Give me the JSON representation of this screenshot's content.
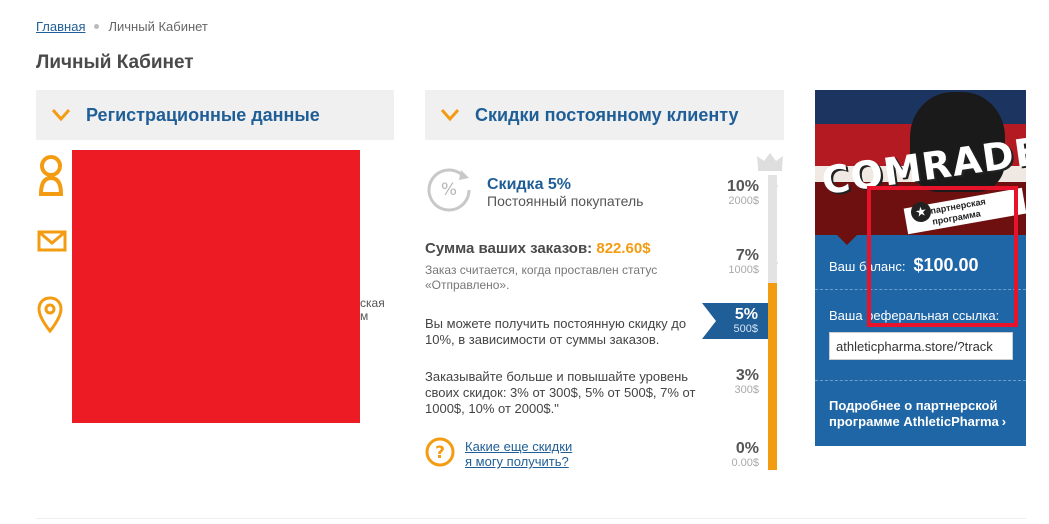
{
  "breadcrumb": {
    "home": "Главная",
    "current": "Личный Кабинет"
  },
  "page_title": "Личный Кабинет",
  "registration": {
    "header": "Регистрационные данные",
    "cut_text_1": "ская",
    "cut_text_2": "м"
  },
  "discounts": {
    "header": "Скидки постоянному клиенту",
    "current_title": "Скидка 5%",
    "current_subtitle": "Постоянный покупатель",
    "sum_label": "Сумма ваших заказов:",
    "sum_value": "822.60$",
    "sum_note": "Заказ считается, когда проставлен статус «Отправлено».",
    "text_1": "Вы можете получить постоянную скидку до 10%, в зависимости от суммы заказов.",
    "text_2": "Заказывайте больше и повышайте уровень своих скидок: 3% от 300$, 5% от 500$, 7% от 1000$, 10% от 2000$.\"",
    "link_line_1": "Какие еще скидки",
    "link_line_2": "я могу получить?",
    "levels": [
      {
        "percent": "10%",
        "amount": "2000$"
      },
      {
        "percent": "7%",
        "amount": "1000$"
      },
      {
        "percent": "5%",
        "amount": "500$"
      },
      {
        "percent": "3%",
        "amount": "300$"
      },
      {
        "percent": "0%",
        "amount": "0.00$"
      }
    ],
    "active_level_index": 2
  },
  "partner": {
    "banner_word": "COMRADE",
    "banner_ribbon_1": "партнерская",
    "banner_ribbon_2": "программа",
    "balance_label": "Ваш баланс:",
    "balance_value": "$100.00",
    "ref_label": "Ваша реферальная ссылка:",
    "ref_value": "athleticpharma.store/?track",
    "more_text": "Подробнее о партнерской программе AthleticPharma"
  },
  "colors": {
    "accent": "#1f5e96",
    "orange": "#f39c12",
    "panel": "#1f66a6",
    "highlight": "#e8132a"
  }
}
